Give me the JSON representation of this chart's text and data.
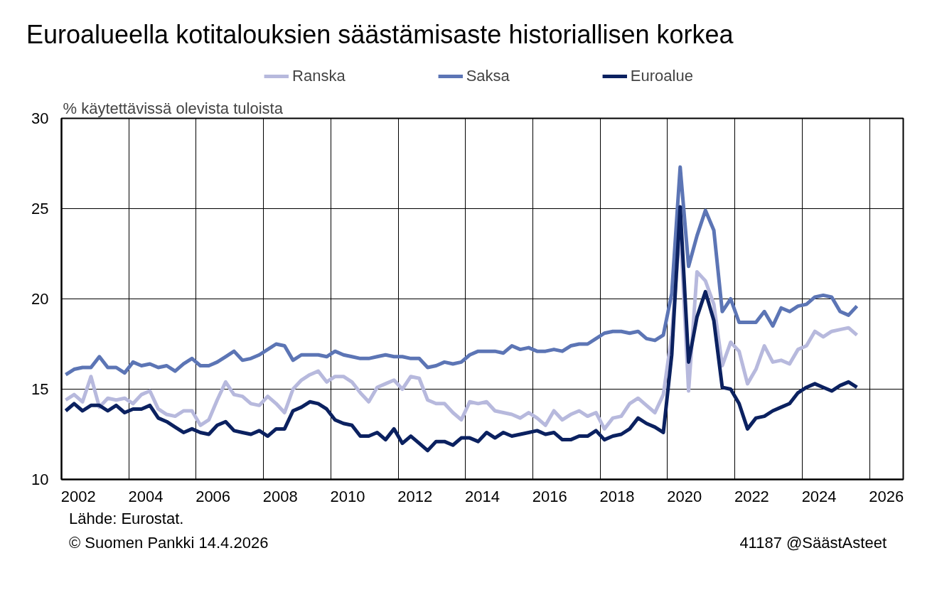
{
  "chart_data": {
    "type": "line",
    "title": "Euroalueella kotitalouksien säästämisaste historiallisen korkea",
    "ylabel": "% käytettävissä olevista tuloista",
    "annotations": [
      "Lähde: Eurostat.",
      "© Suomen Pankki 14.4.2026",
      "41187 @SäästAsteet"
    ],
    "x": [
      2002.125,
      2002.375,
      2002.625,
      2002.875,
      2003.125,
      2003.375,
      2003.625,
      2003.875,
      2004.125,
      2004.375,
      2004.625,
      2004.875,
      2005.125,
      2005.375,
      2005.625,
      2005.875,
      2006.125,
      2006.375,
      2006.625,
      2006.875,
      2007.125,
      2007.375,
      2007.625,
      2007.875,
      2008.125,
      2008.375,
      2008.625,
      2008.875,
      2009.125,
      2009.375,
      2009.625,
      2009.875,
      2010.125,
      2010.375,
      2010.625,
      2010.875,
      2011.125,
      2011.375,
      2011.625,
      2011.875,
      2012.125,
      2012.375,
      2012.625,
      2012.875,
      2013.125,
      2013.375,
      2013.625,
      2013.875,
      2014.125,
      2014.375,
      2014.625,
      2014.875,
      2015.125,
      2015.375,
      2015.625,
      2015.875,
      2016.125,
      2016.375,
      2016.625,
      2016.875,
      2017.125,
      2017.375,
      2017.625,
      2017.875,
      2018.125,
      2018.375,
      2018.625,
      2018.875,
      2019.125,
      2019.375,
      2019.625,
      2019.875,
      2020.125,
      2020.375,
      2020.625,
      2020.875,
      2021.125,
      2021.375,
      2021.625,
      2021.875,
      2022.125,
      2022.375,
      2022.625,
      2022.875,
      2023.125,
      2023.375,
      2023.625,
      2023.875,
      2024.125,
      2024.375,
      2024.625,
      2024.875,
      2025.125,
      2025.375,
      2025.625
    ],
    "series": [
      {
        "name": "Ranska",
        "color": "#b7b9dd",
        "values": [
          14.4,
          14.7,
          14.3,
          15.7,
          14.0,
          14.5,
          14.4,
          14.5,
          14.2,
          14.7,
          14.9,
          13.9,
          13.6,
          13.5,
          13.8,
          13.8,
          13.0,
          13.3,
          14.4,
          15.4,
          14.7,
          14.6,
          14.2,
          14.1,
          14.6,
          14.2,
          13.7,
          15.0,
          15.5,
          15.8,
          16.0,
          15.4,
          15.7,
          15.7,
          15.4,
          14.8,
          14.3,
          15.1,
          15.3,
          15.5,
          15.0,
          15.7,
          15.6,
          14.4,
          14.2,
          14.2,
          13.7,
          13.3,
          14.3,
          14.2,
          14.3,
          13.8,
          13.7,
          13.6,
          13.4,
          13.7,
          13.4,
          13.0,
          13.8,
          13.3,
          13.6,
          13.8,
          13.5,
          13.7,
          12.8,
          13.4,
          13.5,
          14.2,
          14.5,
          14.1,
          13.7,
          14.7,
          18.0,
          24.0,
          14.9,
          21.5,
          21.0,
          19.7,
          16.3,
          17.6,
          17.1,
          15.3,
          16.1,
          17.4,
          16.5,
          16.6,
          16.4,
          17.2,
          17.4,
          18.2,
          17.9,
          18.2,
          18.3,
          18.4,
          18.0
        ]
      },
      {
        "name": "Saksa",
        "color": "#5c75b5",
        "values": [
          15.8,
          16.1,
          16.2,
          16.2,
          16.8,
          16.2,
          16.2,
          15.9,
          16.5,
          16.3,
          16.4,
          16.2,
          16.3,
          16.0,
          16.4,
          16.7,
          16.3,
          16.3,
          16.5,
          16.8,
          17.1,
          16.6,
          16.7,
          16.9,
          17.2,
          17.5,
          17.4,
          16.6,
          16.9,
          16.9,
          16.9,
          16.8,
          17.1,
          16.9,
          16.8,
          16.7,
          16.7,
          16.8,
          16.9,
          16.8,
          16.8,
          16.7,
          16.7,
          16.2,
          16.3,
          16.5,
          16.4,
          16.5,
          16.9,
          17.1,
          17.1,
          17.1,
          17.0,
          17.4,
          17.2,
          17.3,
          17.1,
          17.1,
          17.2,
          17.1,
          17.4,
          17.5,
          17.5,
          17.8,
          18.1,
          18.2,
          18.2,
          18.1,
          18.2,
          17.8,
          17.7,
          18.0,
          20.3,
          27.3,
          21.8,
          23.5,
          24.9,
          23.8,
          19.3,
          20.0,
          18.7,
          18.7,
          18.7,
          19.3,
          18.5,
          19.5,
          19.3,
          19.6,
          19.7,
          20.1,
          20.2,
          20.1,
          19.3,
          19.1,
          19.6
        ]
      },
      {
        "name": "Euroalue",
        "color": "#0b2160",
        "values": [
          13.8,
          14.2,
          13.8,
          14.1,
          14.1,
          13.8,
          14.1,
          13.7,
          13.9,
          13.9,
          14.1,
          13.4,
          13.2,
          12.9,
          12.6,
          12.8,
          12.6,
          12.5,
          13.0,
          13.2,
          12.7,
          12.6,
          12.5,
          12.7,
          12.4,
          12.8,
          12.8,
          13.8,
          14.0,
          14.3,
          14.2,
          13.9,
          13.3,
          13.1,
          13.0,
          12.4,
          12.4,
          12.6,
          12.2,
          12.8,
          12.0,
          12.4,
          12.0,
          11.6,
          12.1,
          12.1,
          11.9,
          12.3,
          12.3,
          12.1,
          12.6,
          12.3,
          12.6,
          12.4,
          12.5,
          12.6,
          12.7,
          12.5,
          12.6,
          12.2,
          12.2,
          12.4,
          12.4,
          12.7,
          12.2,
          12.4,
          12.5,
          12.8,
          13.4,
          13.1,
          12.9,
          12.6,
          16.9,
          25.1,
          16.5,
          19.0,
          20.4,
          18.8,
          15.1,
          15.0,
          14.2,
          12.8,
          13.4,
          13.5,
          13.8,
          14.0,
          14.2,
          14.8,
          15.1,
          15.3,
          15.1,
          14.9,
          15.2,
          15.4,
          15.1
        ]
      }
    ],
    "xlim": [
      2002,
      2027
    ],
    "xticks": [
      {
        "value": 2002.5,
        "label": "2002"
      },
      {
        "value": 2004.5,
        "label": "2004"
      },
      {
        "value": 2006.5,
        "label": "2006"
      },
      {
        "value": 2008.5,
        "label": "2008"
      },
      {
        "value": 2010.5,
        "label": "2010"
      },
      {
        "value": 2012.5,
        "label": "2012"
      },
      {
        "value": 2014.5,
        "label": "2014"
      },
      {
        "value": 2016.5,
        "label": "2016"
      },
      {
        "value": 2018.5,
        "label": "2018"
      },
      {
        "value": 2020.5,
        "label": "2020"
      },
      {
        "value": 2022.5,
        "label": "2022"
      },
      {
        "value": 2024.5,
        "label": "2024"
      },
      {
        "value": 2026.5,
        "label": "2026"
      },
      {
        "value": 2004,
        "label": null
      },
      {
        "value": 2006,
        "label": null
      },
      {
        "value": 2008,
        "label": null
      },
      {
        "value": 2010,
        "label": null
      },
      {
        "value": 2012,
        "label": null
      },
      {
        "value": 2014,
        "label": null
      },
      {
        "value": 2016,
        "label": null
      },
      {
        "value": 2018,
        "label": null
      },
      {
        "value": 2020,
        "label": null
      },
      {
        "value": 2022,
        "label": null
      },
      {
        "value": 2024,
        "label": null
      },
      {
        "value": 2026,
        "label": null
      }
    ],
    "ylim": [
      10,
      30
    ],
    "yticks": [
      10,
      15,
      20,
      25,
      30
    ],
    "grid": true,
    "legend": "top",
    "line_style": "solid",
    "marker": "none"
  }
}
